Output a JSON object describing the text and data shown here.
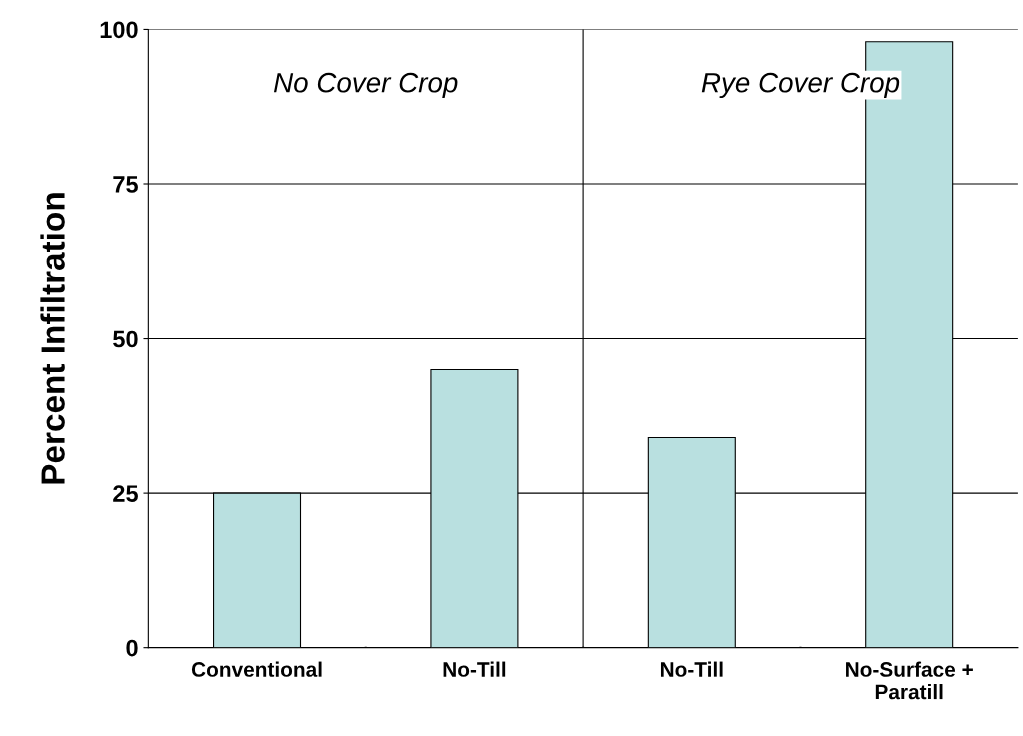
{
  "chart_data": {
    "type": "bar",
    "ylabel": "Percent Infiltration",
    "categories": [
      "Conventional",
      "No-Till",
      "No-Till",
      "No-Surface +\nParatill"
    ],
    "values": [
      25,
      45,
      34,
      98
    ],
    "color": "#b9e0e0",
    "ylim": [
      0,
      100
    ],
    "yticks": [
      0,
      25,
      50,
      75,
      100
    ],
    "grid": "y",
    "annotations": [
      "No Cover Crop",
      "Rye Cover Crop"
    ]
  }
}
